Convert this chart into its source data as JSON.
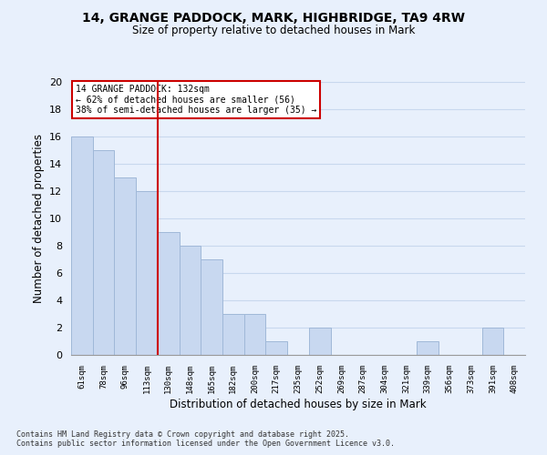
{
  "title_line1": "14, GRANGE PADDOCK, MARK, HIGHBRIDGE, TA9 4RW",
  "title_line2": "Size of property relative to detached houses in Mark",
  "xlabel": "Distribution of detached houses by size in Mark",
  "ylabel": "Number of detached properties",
  "bin_labels": [
    "61sqm",
    "78sqm",
    "96sqm",
    "113sqm",
    "130sqm",
    "148sqm",
    "165sqm",
    "182sqm",
    "200sqm",
    "217sqm",
    "235sqm",
    "252sqm",
    "269sqm",
    "287sqm",
    "304sqm",
    "321sqm",
    "339sqm",
    "356sqm",
    "373sqm",
    "391sqm",
    "408sqm"
  ],
  "bar_heights": [
    16,
    15,
    13,
    12,
    9,
    8,
    7,
    3,
    3,
    1,
    0,
    2,
    0,
    0,
    0,
    0,
    1,
    0,
    0,
    2,
    0
  ],
  "bar_color": "#c8d8f0",
  "bar_edgecolor": "#a0b8d8",
  "subject_line_index": 4,
  "subject_line_color": "#cc0000",
  "annotation_line1": "14 GRANGE PADDOCK: 132sqm",
  "annotation_line2": "← 62% of detached houses are smaller (56)",
  "annotation_line3": "38% of semi-detached houses are larger (35) →",
  "annotation_box_color": "#ffffff",
  "annotation_box_edgecolor": "#cc0000",
  "ylim": [
    0,
    20
  ],
  "yticks": [
    0,
    2,
    4,
    6,
    8,
    10,
    12,
    14,
    16,
    18,
    20
  ],
  "grid_color": "#c8d8ee",
  "background_color": "#e8f0fc",
  "footer_line1": "Contains HM Land Registry data © Crown copyright and database right 2025.",
  "footer_line2": "Contains public sector information licensed under the Open Government Licence v3.0."
}
